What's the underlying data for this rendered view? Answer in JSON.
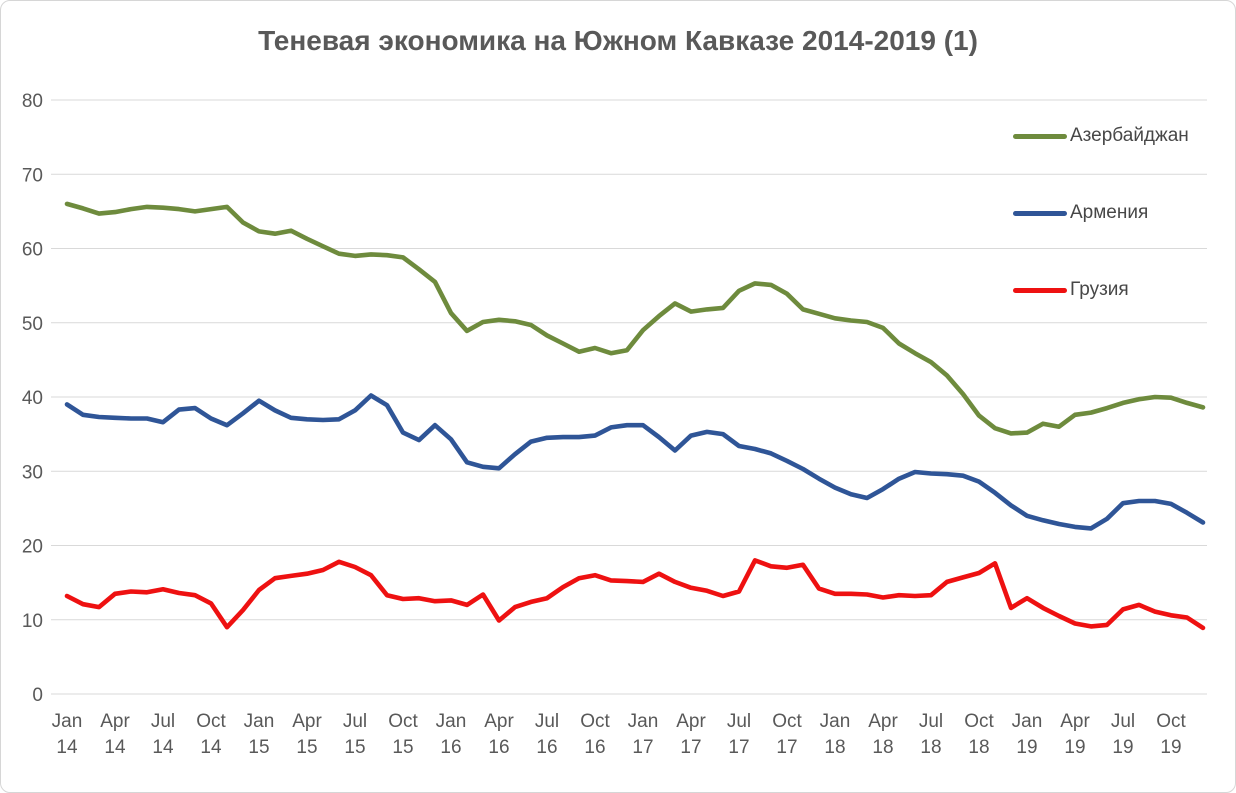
{
  "chart_data": {
    "type": "line",
    "title": "Теневая экономика на Южном Кавказе 2014-2019 (1)",
    "xlabel": "",
    "ylabel": "",
    "ylim": [
      0,
      80
    ],
    "y_ticks": [
      0,
      10,
      20,
      30,
      40,
      50,
      60,
      70,
      80
    ],
    "grid": true,
    "legend_position": "top-right",
    "x_ticks": [
      "Jan 14",
      "Apr 14",
      "Jul 14",
      "Oct 14",
      "Jan 15",
      "Apr 15",
      "Jul 15",
      "Oct 15",
      "Jan 16",
      "Apr 16",
      "Jul 16",
      "Oct 16",
      "Jan 17",
      "Apr 17",
      "Jul 17",
      "Oct 17",
      "Jan 18",
      "Apr 18",
      "Jul 18",
      "Oct 18",
      "Jan 19",
      "Apr 19",
      "Jul 19",
      "Oct 19"
    ],
    "months_per_tick": 3,
    "x_start": "Jan 2014",
    "x_end": "Dec 2019",
    "series": [
      {
        "name": "Азербайджан",
        "color": "#6e8b3d",
        "values": [
          66.0,
          65.4,
          64.7,
          64.9,
          65.3,
          65.6,
          65.5,
          65.3,
          65.0,
          65.3,
          65.6,
          63.5,
          62.3,
          62.0,
          62.4,
          61.3,
          60.3,
          59.3,
          59.0,
          59.2,
          59.1,
          58.8,
          57.2,
          55.5,
          51.3,
          48.9,
          50.1,
          50.4,
          50.2,
          49.7,
          48.3,
          47.2,
          46.1,
          46.6,
          45.9,
          46.3,
          49.0,
          50.9,
          52.6,
          51.5,
          51.8,
          52.0,
          54.3,
          55.3,
          55.1,
          53.9,
          51.8,
          51.2,
          50.6,
          50.3,
          50.1,
          49.3,
          47.2,
          45.9,
          44.7,
          42.9,
          40.4,
          37.5,
          35.8,
          35.1,
          35.2,
          36.4,
          36.0,
          37.6,
          37.9,
          38.5,
          39.2,
          39.7,
          40.0,
          39.9,
          39.2,
          38.6
        ]
      },
      {
        "name": "Армения",
        "color": "#2f5597",
        "values": [
          39.0,
          37.6,
          37.3,
          37.2,
          37.1,
          37.1,
          36.6,
          38.3,
          38.5,
          37.1,
          36.2,
          37.8,
          39.5,
          38.2,
          37.2,
          37.0,
          36.9,
          37.0,
          38.2,
          40.2,
          38.9,
          35.2,
          34.2,
          36.2,
          34.3,
          31.2,
          30.6,
          30.4,
          32.3,
          34.0,
          34.5,
          34.6,
          34.6,
          34.8,
          35.9,
          36.2,
          36.2,
          34.6,
          32.8,
          34.8,
          35.3,
          35.0,
          33.4,
          33.0,
          32.4,
          31.4,
          30.3,
          29.0,
          27.8,
          26.9,
          26.4,
          27.6,
          29.0,
          29.9,
          29.7,
          29.6,
          29.4,
          28.6,
          27.1,
          25.4,
          24.0,
          23.4,
          22.9,
          22.5,
          22.3,
          23.6,
          25.7,
          26.0,
          26.0,
          25.6,
          24.4,
          23.1
        ]
      },
      {
        "name": "Грузия",
        "color": "#ee1111",
        "values": [
          13.2,
          12.1,
          11.7,
          13.5,
          13.8,
          13.7,
          14.1,
          13.6,
          13.3,
          12.2,
          9.0,
          11.3,
          14.0,
          15.6,
          15.9,
          16.2,
          16.7,
          17.8,
          17.1,
          16.0,
          13.3,
          12.8,
          12.9,
          12.5,
          12.6,
          12.0,
          13.4,
          9.9,
          11.7,
          12.4,
          12.9,
          14.4,
          15.6,
          16.0,
          15.3,
          15.2,
          15.1,
          16.2,
          15.1,
          14.3,
          13.9,
          13.2,
          13.8,
          18.0,
          17.2,
          17.0,
          17.4,
          14.2,
          13.5,
          13.5,
          13.4,
          13.0,
          13.3,
          13.2,
          13.3,
          15.1,
          15.7,
          16.3,
          17.6,
          11.6,
          12.9,
          11.6,
          10.5,
          9.5,
          9.1,
          9.3,
          11.4,
          12.0,
          11.1,
          10.6,
          10.3,
          8.9
        ]
      }
    ]
  }
}
